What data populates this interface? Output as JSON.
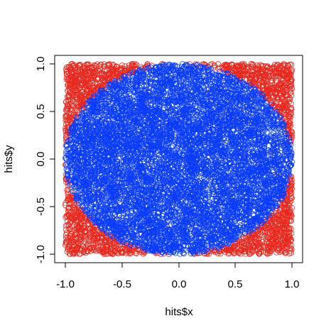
{
  "chart_data": {
    "type": "scatter",
    "title": "",
    "xlabel": "hits$x",
    "ylabel": "hits$y",
    "xlim": [
      -1.0,
      1.0
    ],
    "ylim": [
      -1.0,
      1.0
    ],
    "x_ticks": [
      "-1.0",
      "-0.5",
      "0.0",
      "0.5",
      "1.0"
    ],
    "y_ticks": [
      "-1.0",
      "-0.5",
      "0.0",
      "0.5",
      "1.0"
    ],
    "grid": false,
    "legend": "none",
    "marker": "open-circle",
    "series": [
      {
        "color": "#e8281e",
        "values_description_visible": false,
        "x_range": [
          -1.0,
          1.0
        ],
        "y_range": [
          -1.0,
          1.0
        ],
        "region": "outside unit circle"
      },
      {
        "color": "#0a3cff",
        "values_description_visible": false,
        "x_range": [
          -1.0,
          1.0
        ],
        "y_range": [
          -1.0,
          1.0
        ],
        "region": "inside unit circle"
      }
    ]
  }
}
